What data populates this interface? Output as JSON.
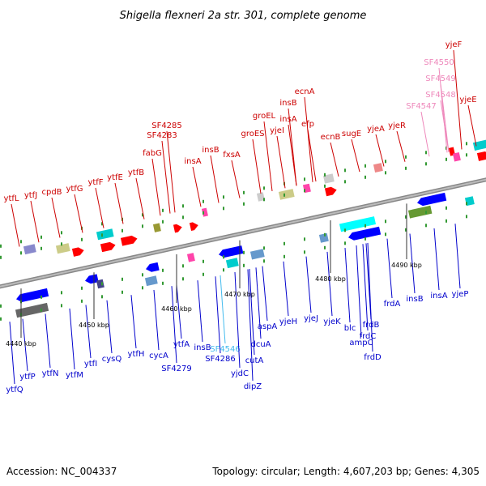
{
  "header": {
    "title": "Shigella flexneri 2a str. 301, complete genome"
  },
  "footer": {
    "accession": "Accession: NC_004337",
    "summary": "Topology: circular; Length: 4,607,203 bp; Genes: 4,305"
  },
  "colors": {
    "forward_label": "#cc0000",
    "reverse_label": "#0000cc",
    "pseudogene_forward": "#ee88bb",
    "pseudogene_reverse": "#44bbee",
    "arrow_forward": "#ff0000",
    "arrow_reverse": "#0000ff",
    "backbone": "#888888"
  },
  "ticks": [
    "4440 kbp",
    "4450 kbp",
    "4460 kbp",
    "4470 kbp",
    "4480 kbp",
    "4490 kbp"
  ],
  "forward_labels": [
    "ytfL",
    "ytfJ",
    "cpdB",
    "ytfG",
    "ytfF",
    "ytfE",
    "ytfB",
    "SF4283",
    "SF4285",
    "fabG",
    "insA",
    "insB",
    "fxsA",
    "groES",
    "groEL",
    "yjeI",
    "insA",
    "insB",
    "efp",
    "ecnA",
    "ecnB",
    "sugE",
    "yjeA",
    "yjeR",
    "SF4547",
    "SF4548",
    "SF4549",
    "SF4550",
    "yjeF",
    "yjeE"
  ],
  "reverse_labels": [
    "ytfQ",
    "ytfP",
    "ytfN",
    "ytfM",
    "ytfI",
    "cysQ",
    "ytfH",
    "cycA",
    "SF4279",
    "ytfA",
    "insB",
    "SF4286",
    "SF4546",
    "yjdC",
    "cutA",
    "dipZ",
    "dcuA",
    "aspA",
    "yjeH",
    "yjeJ",
    "yjeK",
    "blc",
    "ampC",
    "frdD",
    "frdC",
    "frdB",
    "frdA",
    "insB",
    "insA",
    "yjeP"
  ]
}
